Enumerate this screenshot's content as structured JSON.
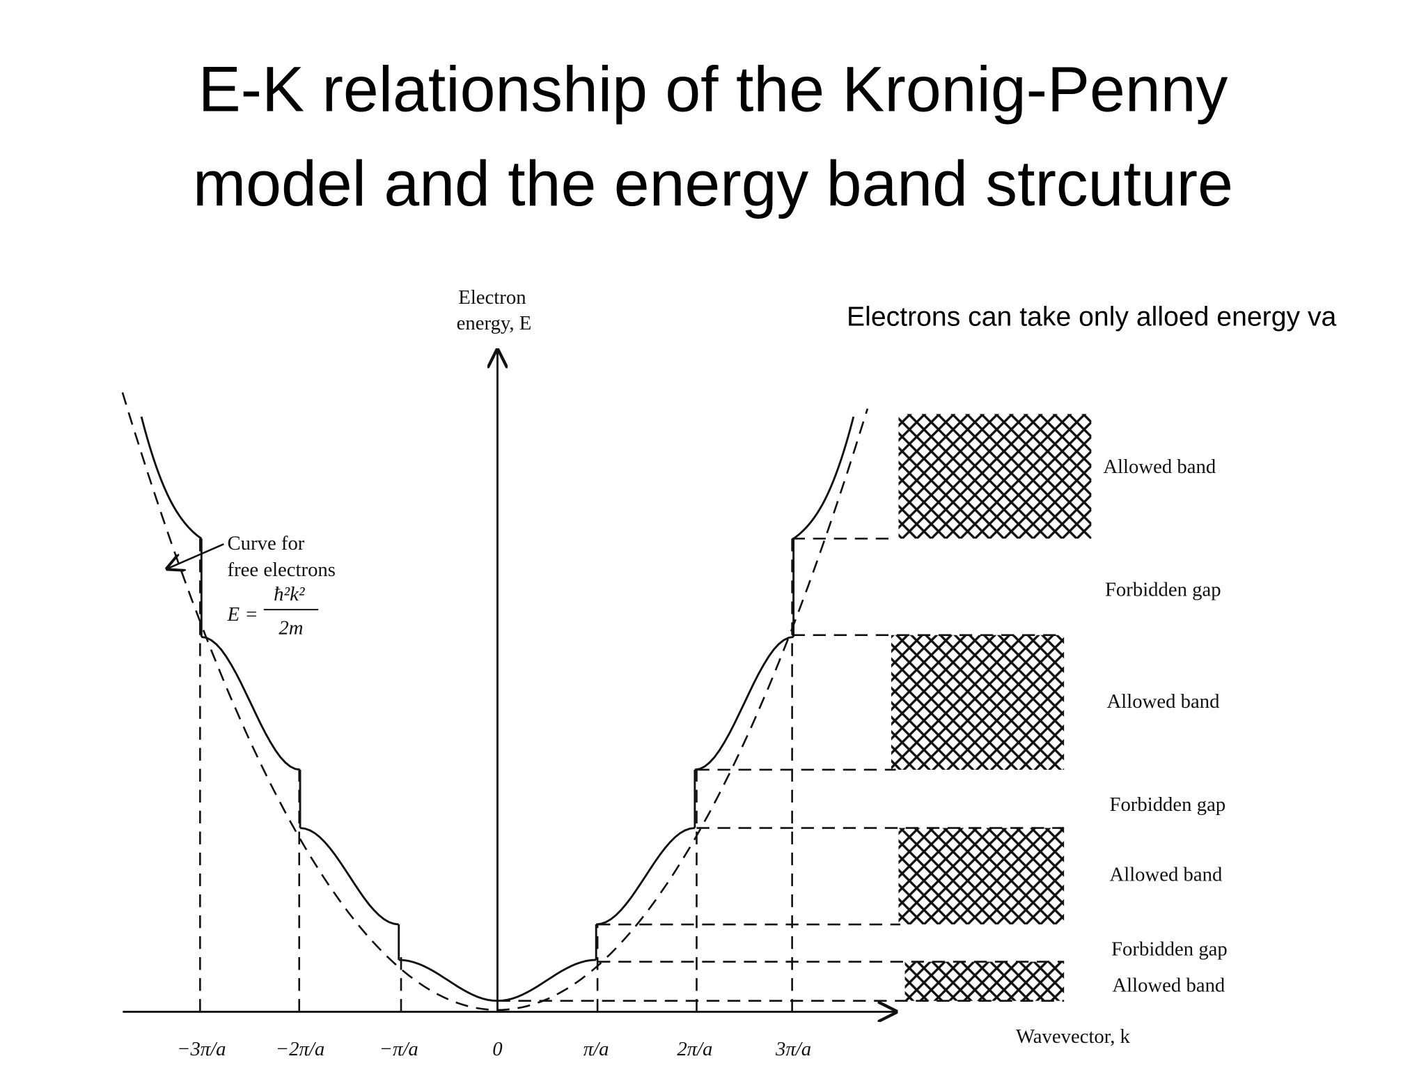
{
  "title_lines": [
    "E-K relationship of the Kronig-Penny",
    "model and the energy band strcuture"
  ],
  "note": "Electrons can take only alloed energy va",
  "diagram": {
    "energy_axis_label": [
      "Electron",
      "energy, E"
    ],
    "wavevector_axis_label": "Wavevector, k",
    "free_electron_label": [
      "Curve for",
      "free electrons"
    ],
    "free_electron_formula": {
      "lhs": "E =",
      "numerator": "ħ²k²",
      "denominator": "2m"
    },
    "k_ticks": [
      "−3π/a",
      "−2π/a",
      "−π/a",
      "0",
      "π/a",
      "2π/a",
      "3π/a"
    ],
    "band_labels": [
      "Allowed band",
      "Forbidden gap",
      "Allowed band",
      "Forbidden gap",
      "Allowed band",
      "Forbidden gap",
      "Allowed band"
    ]
  }
}
